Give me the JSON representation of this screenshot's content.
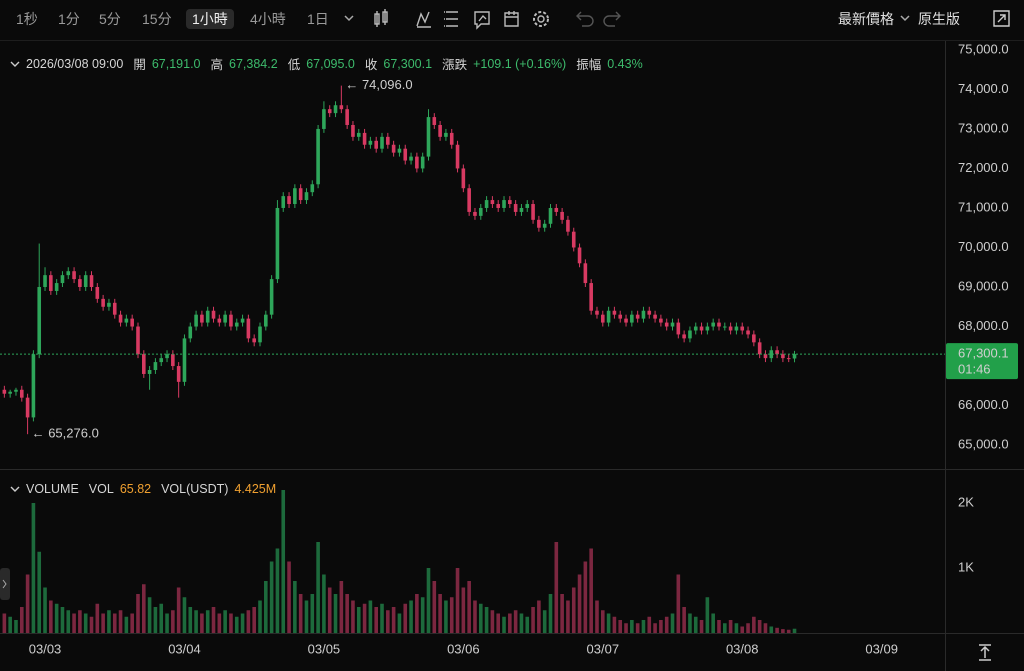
{
  "toolbar": {
    "intervals": [
      "1秒",
      "1分",
      "5分",
      "15分",
      "1小時",
      "4小時",
      "1日"
    ],
    "selected": 4,
    "price_type": "最新價格",
    "chart_style": "原生版"
  },
  "chart_data": [
    {
      "type": "candlestick",
      "header": {
        "time": "2026/03/08 09:00",
        "items": [
          {
            "label": "開",
            "value": "67,191.0"
          },
          {
            "label": "高",
            "value": "67,384.2"
          },
          {
            "label": "低",
            "value": "67,095.0"
          },
          {
            "label": "收",
            "value": "67,300.1"
          },
          {
            "label": "漲跌",
            "value": "+109.1 (+0.16%)"
          },
          {
            "label": "振幅",
            "value": "0.43%"
          }
        ]
      },
      "up_color": "#2ea65a",
      "down_color": "#d83a62",
      "open": [
        66400,
        66300,
        66350,
        66400,
        66200,
        65700,
        67300,
        69000,
        69300,
        68900,
        69100,
        69300,
        69400,
        69200,
        69000,
        69300,
        69000,
        68700,
        68500,
        68600,
        68300,
        68100,
        68200,
        68000,
        67300,
        66800,
        66900,
        67100,
        67200,
        67300,
        67000,
        66600,
        67700,
        68000,
        68300,
        68100,
        68400,
        68200,
        68100,
        68300,
        68000,
        68100,
        68200,
        67700,
        67600,
        68000,
        68300,
        69200,
        71000,
        71300,
        71100,
        71500,
        71200,
        71400,
        71600,
        73000,
        73500,
        73400,
        73600,
        73500,
        73100,
        72800,
        72900,
        72600,
        72700,
        72500,
        72800,
        72600,
        72400,
        72500,
        72200,
        72300,
        72000,
        72300,
        73300,
        73100,
        72800,
        72900,
        72600,
        72000,
        71500,
        70900,
        70800,
        71000,
        71200,
        71100,
        71000,
        71200,
        71100,
        70900,
        71000,
        71100,
        70700,
        70500,
        70600,
        71000,
        70900,
        70700,
        70400,
        70000,
        69600,
        69100,
        68400,
        68300,
        68100,
        68400,
        68300,
        68200,
        68100,
        68300,
        68200,
        68400,
        68300,
        68200,
        68100,
        68000,
        68100,
        67800,
        67700,
        67900,
        68000,
        67900,
        68000,
        68100,
        68000,
        68000,
        67900,
        68000,
        67900,
        67800,
        67600,
        67300,
        67200,
        67400,
        67300,
        67200,
        67191
      ],
      "high": [
        66500,
        66400,
        66450,
        66500,
        66300,
        67400,
        70100,
        69500,
        69400,
        69200,
        69400,
        69500,
        69500,
        69300,
        69400,
        69400,
        69100,
        68800,
        68700,
        68700,
        68400,
        68300,
        68300,
        68100,
        67400,
        67000,
        67200,
        67300,
        67400,
        67400,
        67100,
        67800,
        68100,
        68400,
        68400,
        68500,
        68500,
        68300,
        68400,
        68400,
        68200,
        68300,
        68300,
        67800,
        68100,
        68400,
        69300,
        71200,
        71400,
        71400,
        71600,
        71600,
        71500,
        71700,
        73100,
        73700,
        73600,
        73700,
        74096,
        73600,
        73200,
        73000,
        73000,
        72800,
        72800,
        72900,
        72900,
        72700,
        72600,
        72600,
        72400,
        72400,
        72400,
        73500,
        73400,
        73200,
        73000,
        73000,
        72700,
        72100,
        71600,
        71000,
        71100,
        71300,
        71300,
        71200,
        71300,
        71300,
        71200,
        71100,
        71200,
        71200,
        70800,
        70700,
        71100,
        71100,
        71000,
        70800,
        70500,
        70100,
        69700,
        69200,
        68500,
        68400,
        68500,
        68500,
        68400,
        68300,
        68400,
        68400,
        68500,
        68500,
        68400,
        68300,
        68200,
        68200,
        68200,
        67900,
        68000,
        68100,
        68100,
        68100,
        68200,
        68200,
        68100,
        68100,
        68100,
        68100,
        68000,
        67900,
        67700,
        67400,
        67500,
        67500,
        67400,
        67300,
        67384.2
      ],
      "low": [
        66200,
        66200,
        66250,
        66100,
        65276,
        65600,
        67200,
        68900,
        68800,
        68800,
        69000,
        69200,
        69100,
        68900,
        68900,
        68900,
        68600,
        68400,
        68400,
        68200,
        68000,
        68000,
        67900,
        67200,
        66700,
        66400,
        66800,
        67000,
        67100,
        66900,
        66200,
        66500,
        67600,
        67900,
        68000,
        68000,
        68100,
        68000,
        68000,
        67900,
        67900,
        68000,
        67600,
        67500,
        67500,
        67900,
        68200,
        69100,
        70900,
        71000,
        71000,
        71100,
        71100,
        71300,
        71500,
        72900,
        73300,
        73300,
        73400,
        73000,
        72700,
        72700,
        72500,
        72500,
        72400,
        72400,
        72500,
        72300,
        72300,
        72100,
        72100,
        71900,
        71900,
        72200,
        73000,
        72700,
        72700,
        72500,
        71900,
        71400,
        70800,
        70700,
        70700,
        70900,
        71000,
        70900,
        70900,
        71000,
        70800,
        70800,
        70900,
        70600,
        70400,
        70400,
        70500,
        70800,
        70600,
        70300,
        69900,
        69500,
        69000,
        68300,
        68200,
        68000,
        68000,
        68200,
        68100,
        68000,
        68000,
        68100,
        68100,
        68200,
        68100,
        68000,
        67900,
        67900,
        67700,
        67600,
        67600,
        67800,
        67800,
        67800,
        67900,
        67900,
        67900,
        67800,
        67800,
        67800,
        67700,
        67500,
        67200,
        67100,
        67100,
        67200,
        67100,
        67100,
        67095
      ],
      "close": [
        66300,
        66350,
        66400,
        66200,
        65700,
        67300,
        69000,
        69300,
        68900,
        69100,
        69300,
        69400,
        69200,
        69000,
        69300,
        69000,
        68700,
        68500,
        68600,
        68300,
        68100,
        68200,
        68000,
        67300,
        66800,
        66900,
        67100,
        67200,
        67300,
        67000,
        66600,
        67700,
        68000,
        68300,
        68100,
        68400,
        68200,
        68100,
        68300,
        68000,
        68100,
        68200,
        67700,
        67600,
        68000,
        68300,
        69200,
        71000,
        71300,
        71100,
        71500,
        71200,
        71400,
        71600,
        73000,
        73500,
        73400,
        73600,
        73500,
        73100,
        72800,
        72900,
        72600,
        72700,
        72500,
        72800,
        72600,
        72400,
        72500,
        72200,
        72300,
        72000,
        72300,
        73300,
        73100,
        72800,
        72900,
        72600,
        72000,
        71500,
        70900,
        70800,
        71000,
        71200,
        71100,
        71000,
        71200,
        71100,
        70900,
        71000,
        71100,
        70700,
        70500,
        70600,
        71000,
        70900,
        70700,
        70400,
        70000,
        69600,
        69100,
        68400,
        68300,
        68100,
        68400,
        68300,
        68200,
        68100,
        68300,
        68200,
        68400,
        68300,
        68200,
        68100,
        68000,
        68100,
        67800,
        67700,
        67900,
        68000,
        67900,
        68000,
        68100,
        68000,
        68000,
        67900,
        68000,
        67900,
        67800,
        67600,
        67300,
        67200,
        67400,
        67300,
        67200,
        67191,
        67300.1
      ],
      "xlim": [
        -0.75,
        161.9
      ],
      "xticks": [
        {
          "value": 7,
          "label": "03/03"
        },
        {
          "value": 31,
          "label": "03/04"
        },
        {
          "value": 55,
          "label": "03/05"
        },
        {
          "value": 79,
          "label": "03/06"
        },
        {
          "value": 103,
          "label": "03/07"
        },
        {
          "value": 127,
          "label": "03/08"
        },
        {
          "value": 151,
          "label": "03/09"
        }
      ],
      "ylim": [
        64420,
        75200
      ],
      "yticks": [
        {
          "value": 65000,
          "label": "65,000.0"
        },
        {
          "value": 66000,
          "label": "66,000.0"
        },
        {
          "value": 67000,
          "label": "67,000.0"
        },
        {
          "value": 68000,
          "label": "68,000.0"
        },
        {
          "value": 69000,
          "label": "69,000.0"
        },
        {
          "value": 70000,
          "label": "70,000.0"
        },
        {
          "value": 71000,
          "label": "71,000.0"
        },
        {
          "value": 72000,
          "label": "72,000.0"
        },
        {
          "value": 73000,
          "label": "73,000.0"
        },
        {
          "value": 74000,
          "label": "74,000.0"
        },
        {
          "value": 75000,
          "label": "75,000.0"
        }
      ],
      "grid": true,
      "annotations": [
        {
          "text": "← 74,096.0",
          "index": 58,
          "price": "high"
        },
        {
          "text": "← 65,276.0",
          "index": 4,
          "price": "low"
        }
      ],
      "last_price": {
        "value": 67300.1,
        "label": "67,300.1"
      },
      "countdown": "01:46"
    },
    {
      "type": "bar",
      "header": {
        "title": "VOLUME",
        "items": [
          {
            "label": "VOL",
            "value": "65.82"
          },
          {
            "label": "VOL(USDT)",
            "value": "4.425M"
          }
        ]
      },
      "up_color": "#1d6a3c",
      "down_color": "#7c2740",
      "values": [
        300,
        250,
        200,
        400,
        900,
        2000,
        1250,
        700,
        500,
        450,
        400,
        350,
        300,
        350,
        300,
        250,
        450,
        300,
        350,
        300,
        350,
        250,
        300,
        600,
        750,
        550,
        400,
        450,
        300,
        350,
        700,
        550,
        400,
        350,
        300,
        350,
        400,
        300,
        350,
        300,
        250,
        300,
        350,
        400,
        500,
        800,
        1100,
        1300,
        2200,
        1100,
        800,
        600,
        500,
        600,
        1400,
        900,
        700,
        600,
        800,
        600,
        500,
        400,
        450,
        500,
        400,
        450,
        350,
        400,
        300,
        450,
        500,
        600,
        550,
        1000,
        800,
        600,
        500,
        550,
        1000,
        700,
        800,
        500,
        450,
        400,
        350,
        300,
        250,
        300,
        350,
        300,
        250,
        400,
        500,
        350,
        600,
        1400,
        600,
        500,
        700,
        900,
        1100,
        1300,
        500,
        350,
        300,
        250,
        200,
        150,
        200,
        150,
        200,
        250,
        150,
        200,
        250,
        300,
        900,
        400,
        300,
        250,
        200,
        550,
        300,
        200,
        150,
        200,
        150,
        100,
        150,
        250,
        200,
        150,
        100,
        80,
        60,
        50,
        65.82
      ],
      "ylim": [
        0,
        2500
      ],
      "yticks": [
        {
          "value": 1000,
          "label": "1K"
        },
        {
          "value": 2000,
          "label": "2K"
        }
      ]
    }
  ]
}
